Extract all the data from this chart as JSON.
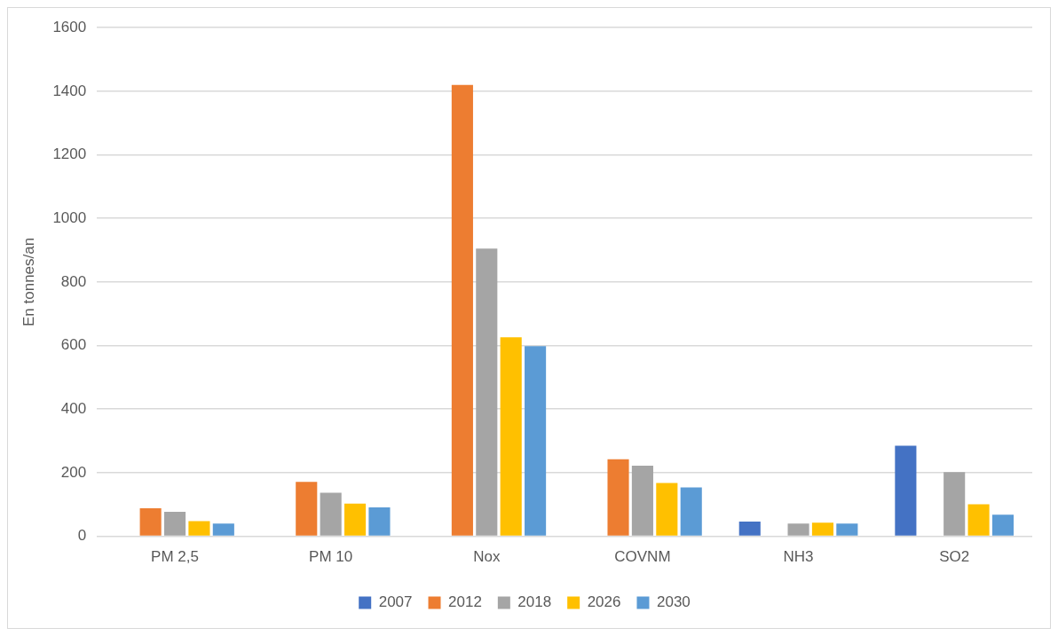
{
  "chart_data": {
    "type": "bar",
    "ylabel": "En tonnes/an",
    "categories": [
      "PM 2,5",
      "PM 10",
      "Nox",
      "COVNM",
      "NH3",
      "SO2"
    ],
    "series": [
      {
        "name": "2007",
        "color": "#4472c4",
        "values": [
          null,
          null,
          null,
          null,
          46,
          285
        ]
      },
      {
        "name": "2012",
        "color": "#ed7d31",
        "values": [
          88,
          171,
          1420,
          242,
          null,
          null
        ]
      },
      {
        "name": "2018",
        "color": "#a5a5a5",
        "values": [
          77,
          137,
          905,
          222,
          40,
          202
        ]
      },
      {
        "name": "2026",
        "color": "#ffc000",
        "values": [
          48,
          103,
          626,
          168,
          43,
          101
        ]
      },
      {
        "name": "2030",
        "color": "#5b9bd5",
        "values": [
          40,
          91,
          598,
          154,
          40,
          68
        ]
      }
    ],
    "ylim": [
      0,
      1600
    ],
    "yticks": [
      0,
      200,
      400,
      600,
      800,
      1000,
      1200,
      1400,
      1600
    ],
    "grid": "y",
    "legend": "bottom"
  }
}
